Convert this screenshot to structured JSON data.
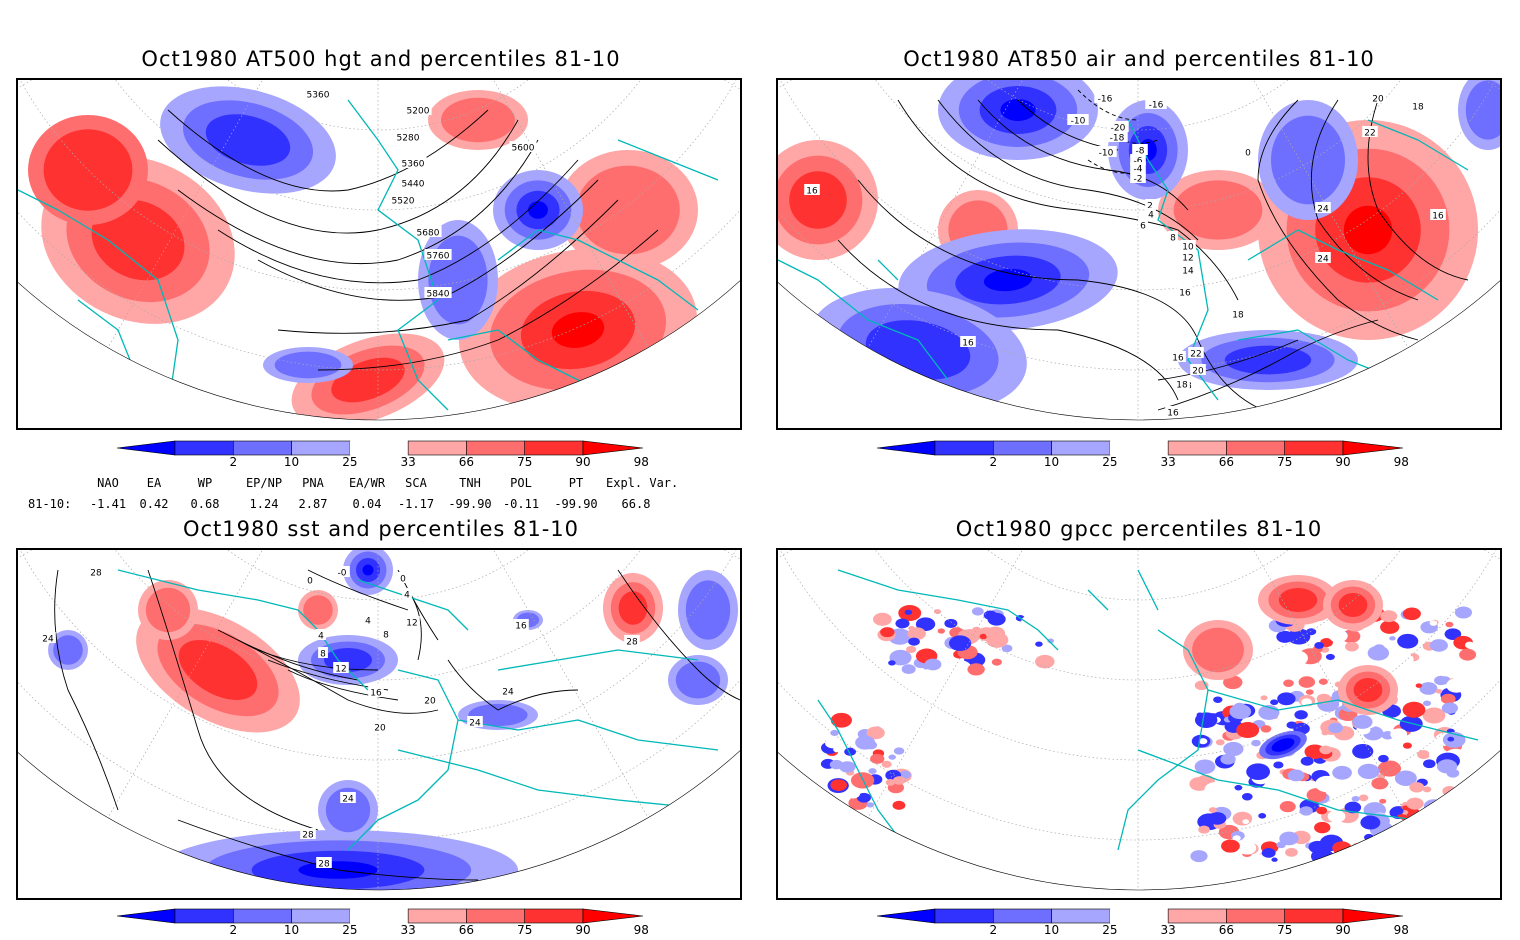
{
  "panels": [
    {
      "id": "hgt",
      "title": "Oct1980 AT500 hgt and percentiles 81-10",
      "contour_labels": [
        "5360",
        "5200",
        "5280",
        "5360",
        "5440",
        "5520",
        "5600",
        "5680",
        "5760",
        "5840"
      ]
    },
    {
      "id": "air",
      "title": "Oct1980 AT850 air and percentiles 81-10",
      "contour_labels": [
        "-16",
        "-16",
        "-10",
        "-20",
        "-18",
        "-10",
        "-8",
        "-6",
        "-4",
        "-2",
        "2",
        "4",
        "6",
        "8",
        "10",
        "12",
        "14",
        "16",
        "18",
        "16",
        "18",
        "0",
        "20",
        "22",
        "24",
        "24",
        "18",
        "16",
        "22",
        "20",
        "18",
        "16",
        "16",
        "16"
      ]
    },
    {
      "id": "sst",
      "title": "Oct1980 sst and percentiles 81-10",
      "contour_labels": [
        "28",
        "24",
        "0",
        "-0",
        "0",
        "4",
        "4",
        "8",
        "8",
        "4",
        "12",
        "12",
        "16",
        "20",
        "20",
        "24",
        "24",
        "16",
        "28",
        "24",
        "28",
        "28"
      ]
    },
    {
      "id": "gpcc",
      "title": "Oct1980 gpcc percentiles 81-10",
      "contour_labels": []
    }
  ],
  "colorbar": {
    "ticks": [
      "2",
      "10",
      "25",
      "33",
      "66",
      "75",
      "90",
      "98"
    ],
    "colors": [
      "#0000ff",
      "#3232ff",
      "#6e6eff",
      "#a6a6ff",
      "#ffffff",
      "#ffa6a6",
      "#ff6e6e",
      "#ff3232",
      "#ff0000"
    ]
  },
  "indices": {
    "row_label": "81-10:",
    "headers": [
      "NAO",
      "EA",
      "WP",
      "EP/NP",
      "PNA",
      "EA/WR",
      "SCA",
      "TNH",
      "POL",
      "PT",
      "Expl. Var."
    ],
    "values": [
      "-1.41",
      "0.42",
      "0.68",
      "1.24",
      "2.87",
      "0.04",
      "-1.17",
      "-99.90",
      "-0.11",
      "-99.90",
      "66.8"
    ]
  },
  "colors": {
    "coast": "#00b8b8",
    "contour": "#000000",
    "grid": "#aaaaaa"
  }
}
